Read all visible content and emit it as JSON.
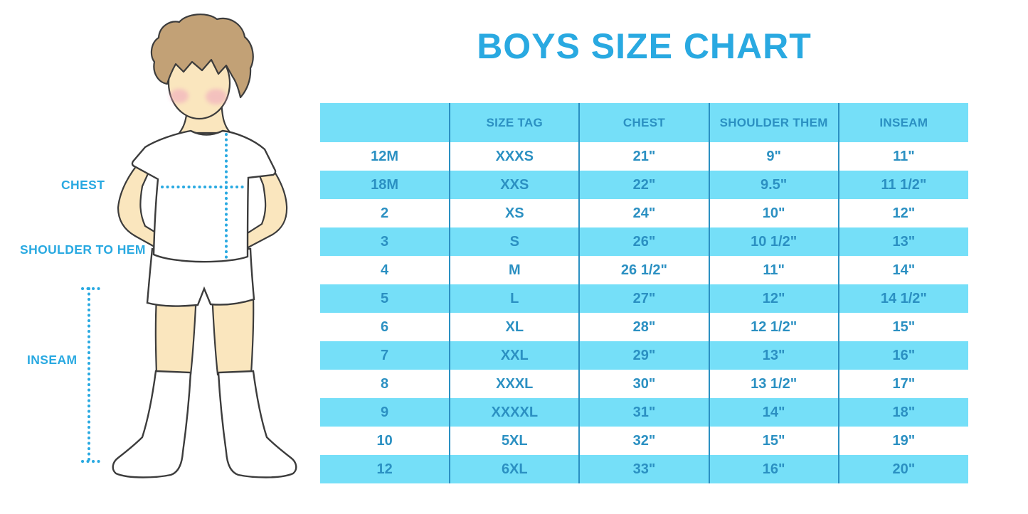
{
  "title": "BOYS SIZE CHART",
  "colors": {
    "accent_blue": "#29A9E1",
    "stripe_cyan": "#75DFF8",
    "table_blue": "#2B90C2",
    "skin": "#FAE6BE",
    "hair": "#C2A176",
    "blush": "#F0A9BE"
  },
  "diagram": {
    "labels": {
      "chest": "CHEST",
      "shoulder_to_hem": "SHOULDER TO HEM",
      "inseam": "INSEAM"
    }
  },
  "chart_data": {
    "type": "table",
    "title": "BOYS SIZE CHART",
    "columns": [
      "",
      "SIZE TAG",
      "CHEST",
      "SHOULDER THEM",
      "INSEAM"
    ],
    "rows": [
      [
        "12M",
        "XXXS",
        "21\"",
        "9\"",
        "11\""
      ],
      [
        "18M",
        "XXS",
        "22\"",
        "9.5\"",
        "11 1/2\""
      ],
      [
        "2",
        "XS",
        "24\"",
        "10\"",
        "12\""
      ],
      [
        "3",
        "S",
        "26\"",
        "10 1/2\"",
        "13\""
      ],
      [
        "4",
        "M",
        "26 1/2\"",
        "11\"",
        "14\""
      ],
      [
        "5",
        "L",
        "27\"",
        "12\"",
        "14 1/2\""
      ],
      [
        "6",
        "XL",
        "28\"",
        "12 1/2\"",
        "15\""
      ],
      [
        "7",
        "XXL",
        "29\"",
        "13\"",
        "16\""
      ],
      [
        "8",
        "XXXL",
        "30\"",
        "13 1/2\"",
        "17\""
      ],
      [
        "9",
        "XXXXL",
        "31\"",
        "14\"",
        "18\""
      ],
      [
        "10",
        "5XL",
        "32\"",
        "15\"",
        "19\""
      ],
      [
        "12",
        "6XL",
        "33\"",
        "16\"",
        "20\""
      ]
    ]
  }
}
